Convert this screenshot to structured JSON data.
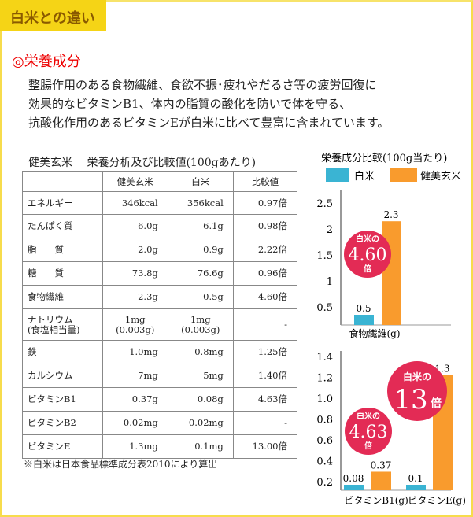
{
  "title": "白米との違い",
  "section": "◎栄養成分",
  "intro": "整腸作用のある食物繊維、食欲不振･疲れやだるさ等の疲労回復に\n効果的なビタミンB1、体内の脂質の酸化を防いで体を守る、\n抗酸化作用のあるビタミンEが白米に比べて豊富に含まれています。",
  "table": {
    "caption": "健美玄米　 栄養分析及び比較値(100gあたり)",
    "headers": [
      "",
      "健美玄米",
      "白米",
      "比較値"
    ],
    "rows": [
      [
        "エネルギー",
        "346kcal",
        "356kcal",
        "0.97倍"
      ],
      [
        "たんぱく質",
        "6.0g",
        "6.1g",
        "0.98倍"
      ],
      [
        "脂　　質",
        "2.0g",
        "0.9g",
        "2.22倍"
      ],
      [
        "糖　　質",
        "73.8g",
        "76.6g",
        "0.96倍"
      ],
      [
        "食物繊維",
        "2.3g",
        "0.5g",
        "4.60倍"
      ],
      [
        "ナトリウム\n(食塩相当量)",
        "1mg\n(0.003g)",
        "1mg\n(0.003g)",
        "-"
      ],
      [
        "鉄",
        "1.0mg",
        "0.8mg",
        "1.25倍"
      ],
      [
        "カルシウム",
        "7mg",
        "5mg",
        "1.40倍"
      ],
      [
        "ビタミンB1",
        "0.37g",
        "0.08g",
        "4.63倍"
      ],
      [
        "ビタミンB2",
        "0.02mg",
        "0.02mg",
        "-"
      ],
      [
        "ビタミンE",
        "1.3mg",
        "0.1mg",
        "13.00倍"
      ]
    ],
    "note": "※白米は日本食品標準成分表2010により算出"
  },
  "chart_data": [
    {
      "type": "bar",
      "title": "栄養成分比較(100g当たり)",
      "legend": [
        "白米",
        "健美玄米"
      ],
      "colors": [
        "#3ab4d3",
        "#f99b2d"
      ],
      "categories": [
        "食物繊維(g)"
      ],
      "series": [
        {
          "name": "白米",
          "values": [
            0.5
          ]
        },
        {
          "name": "健美玄米",
          "values": [
            2.3
          ]
        }
      ],
      "yticks": [
        "0.5",
        "1",
        "1.5",
        "2",
        "2.5"
      ],
      "ylim": [
        0,
        2.5
      ],
      "badge": {
        "line1": "白米の",
        "value": "4.60",
        "line3": "倍"
      }
    },
    {
      "type": "bar",
      "categories": [
        "ビタミンB1(g)",
        "ビタミンE(g)"
      ],
      "series": [
        {
          "name": "白米",
          "values": [
            0.08,
            0.1
          ]
        },
        {
          "name": "健美玄米",
          "values": [
            0.37,
            1.3
          ]
        }
      ],
      "labels": [
        [
          "0.08",
          "0.1"
        ],
        [
          "0.37",
          "1.3"
        ]
      ],
      "yticks": [
        "0.2",
        "0.4",
        "0.6",
        "0.8",
        "1.0",
        "1.2",
        "1.4"
      ],
      "ylim": [
        0,
        1.4
      ],
      "badges": [
        {
          "line1": "白米の",
          "value": "4.63",
          "line3": "倍"
        },
        {
          "line1": "白米の",
          "value": "13",
          "line3": "倍"
        }
      ]
    }
  ]
}
